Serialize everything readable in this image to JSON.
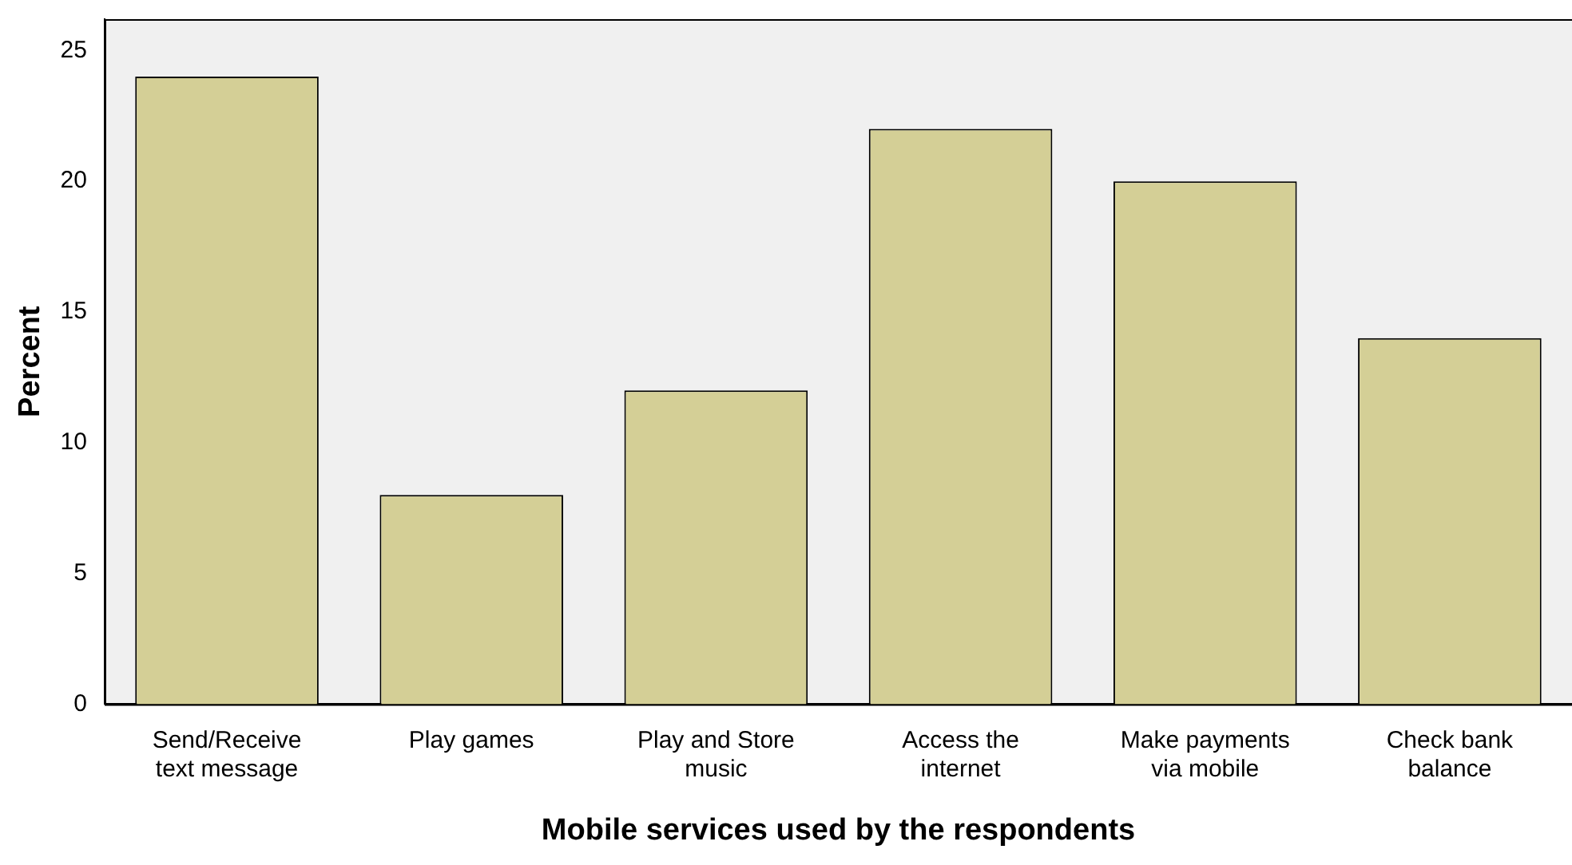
{
  "chart_data": {
    "type": "bar",
    "xlabel": "Mobile services used by the respondents",
    "ylabel": "Percent",
    "categories": [
      "Send/Receive text message",
      "Play games",
      "Play and Store music",
      "Access the internet",
      "Make payments via mobile",
      "Check bank balance"
    ],
    "values": [
      24,
      8,
      12,
      22,
      20,
      14
    ],
    "color": "#d4cf96",
    "ylim": [
      0,
      26.2
    ],
    "yticks": [
      0,
      5,
      10,
      15,
      20,
      25
    ],
    "grid": false,
    "legend": false
  }
}
